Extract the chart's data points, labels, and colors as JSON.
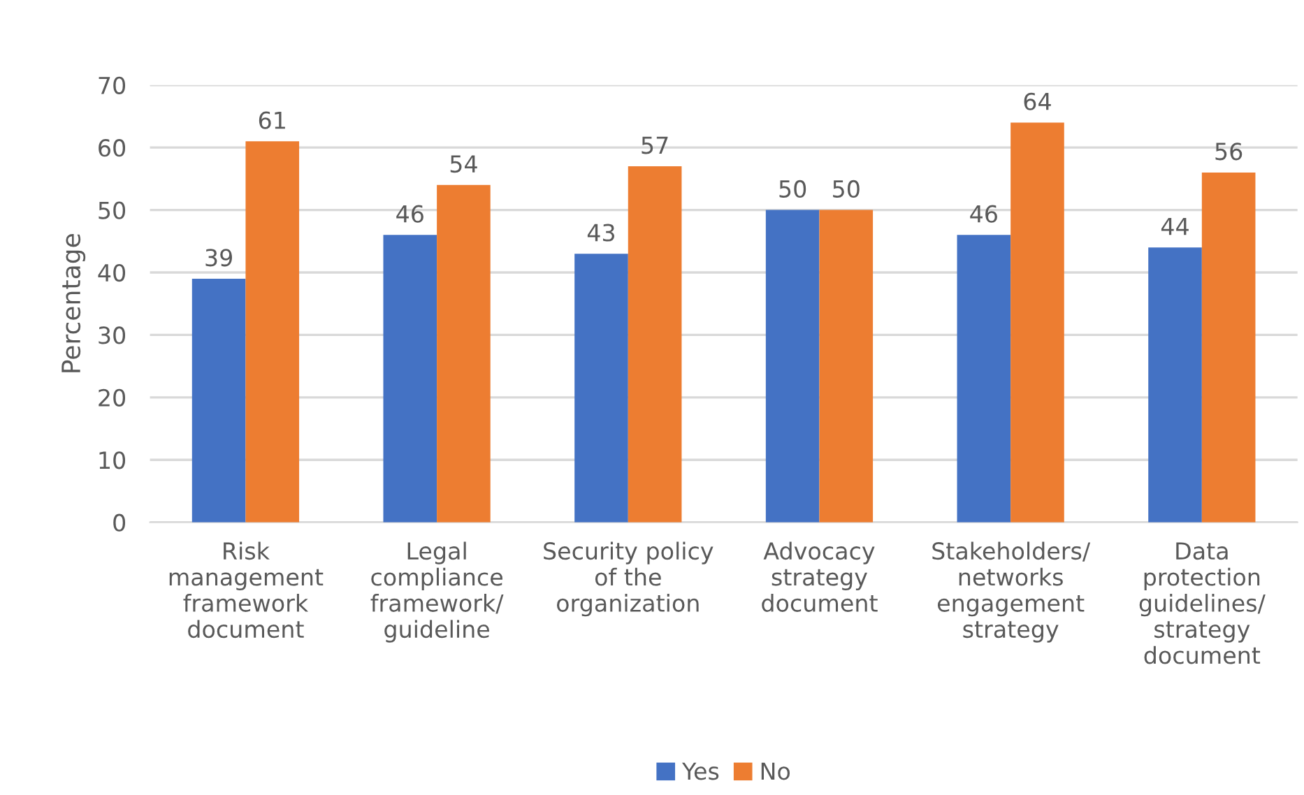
{
  "chart_data": {
    "type": "bar",
    "ylabel": "Percentage",
    "categories": [
      "Risk\nmanagement\nframework\ndocument",
      "Legal\ncompliance\nframework/\nguideline",
      "Security policy\nof the\norganization",
      "Advocacy\nstrategy\ndocument",
      "Stakeholders/\nnetworks\nengagement\nstrategy",
      "Data\nprotection\nguidelines/\nstrategy\ndocument"
    ],
    "series": [
      {
        "name": "Yes",
        "color": "#4472c4",
        "values": [
          39,
          46,
          43,
          50,
          46,
          44
        ]
      },
      {
        "name": "No",
        "color": "#ed7d31",
        "values": [
          61,
          54,
          57,
          50,
          64,
          56
        ]
      }
    ],
    "ylim": [
      0,
      70
    ],
    "yticks": [
      0,
      10,
      20,
      30,
      40,
      50,
      60,
      70
    ],
    "grid": "y",
    "legend": "bottom",
    "data_labels": true
  }
}
